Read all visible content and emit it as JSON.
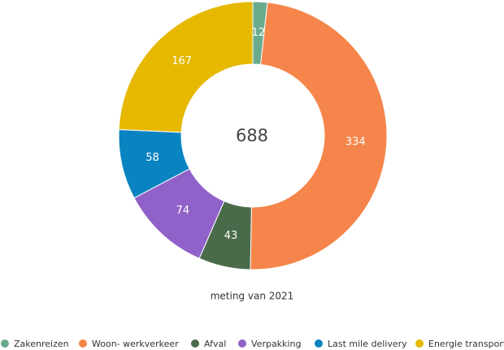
{
  "chart_data": {
    "type": "donut",
    "total": 688,
    "subtitle": "meting van 2021",
    "categories": [
      "Zakenreizen",
      "Woon- werkverkeer",
      "Afval",
      "Verpakking",
      "Last mile delivery",
      "Energie transport"
    ],
    "values": [
      12,
      334,
      43,
      74,
      58,
      167
    ],
    "colors": [
      "#6aab8e",
      "#f5854a",
      "#4a6b4a",
      "#9061c8",
      "#0a84c1",
      "#e6b800"
    ],
    "legend": "bottom"
  }
}
